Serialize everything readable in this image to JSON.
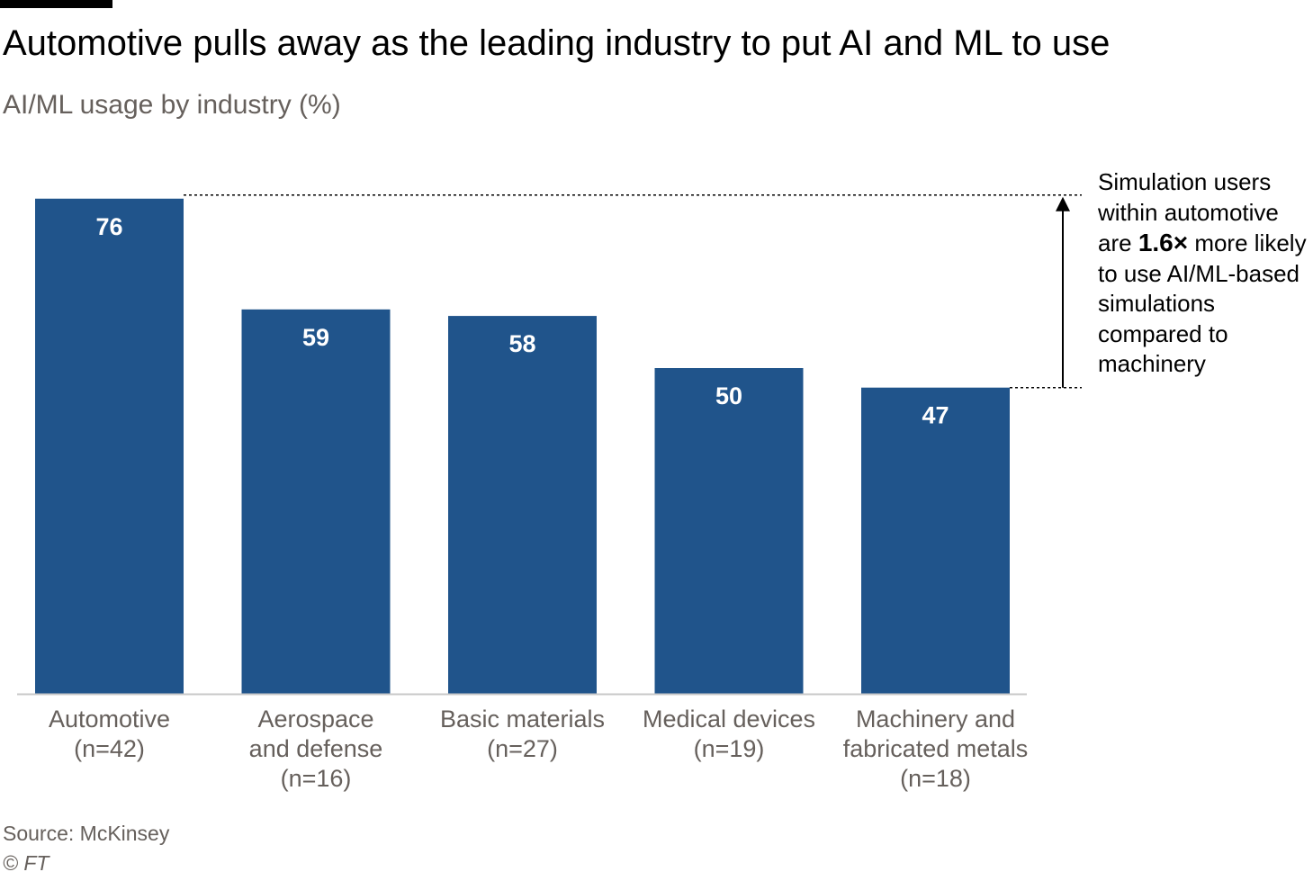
{
  "header": {
    "title": "Automotive pulls away as the leading industry to put AI and ML to use",
    "subtitle": "AI/ML usage by industry (%)"
  },
  "annotation": {
    "text_before": "Simulation users within automotive are ",
    "emphasis": "1.6×",
    "text_after": " more likely to use AI/ML-based simulations compared to machinery"
  },
  "footer": {
    "source": "Source: McKinsey",
    "copyright": "© FT"
  },
  "colors": {
    "bar": "#20548b",
    "axis": "#c8c8c8",
    "muted_text": "#66605c"
  },
  "chart_data": {
    "type": "bar",
    "title": "Automotive pulls away as the leading industry to put AI and ML to use",
    "subtitle": "AI/ML usage by industry (%)",
    "categories": [
      [
        "Automotive",
        "(n=42)"
      ],
      [
        "Aerospace",
        "and defense",
        "(n=16)"
      ],
      [
        "Basic materials",
        "(n=27)"
      ],
      [
        "Medical devices",
        "(n=19)"
      ],
      [
        "Machinery and",
        "fabricated metals",
        "(n=18)"
      ]
    ],
    "values": [
      76,
      59,
      58,
      50,
      47
    ],
    "data_labels": true,
    "ylim": [
      0,
      76
    ],
    "grid": false,
    "legend": "none",
    "reference_lines": [
      76,
      47
    ]
  }
}
